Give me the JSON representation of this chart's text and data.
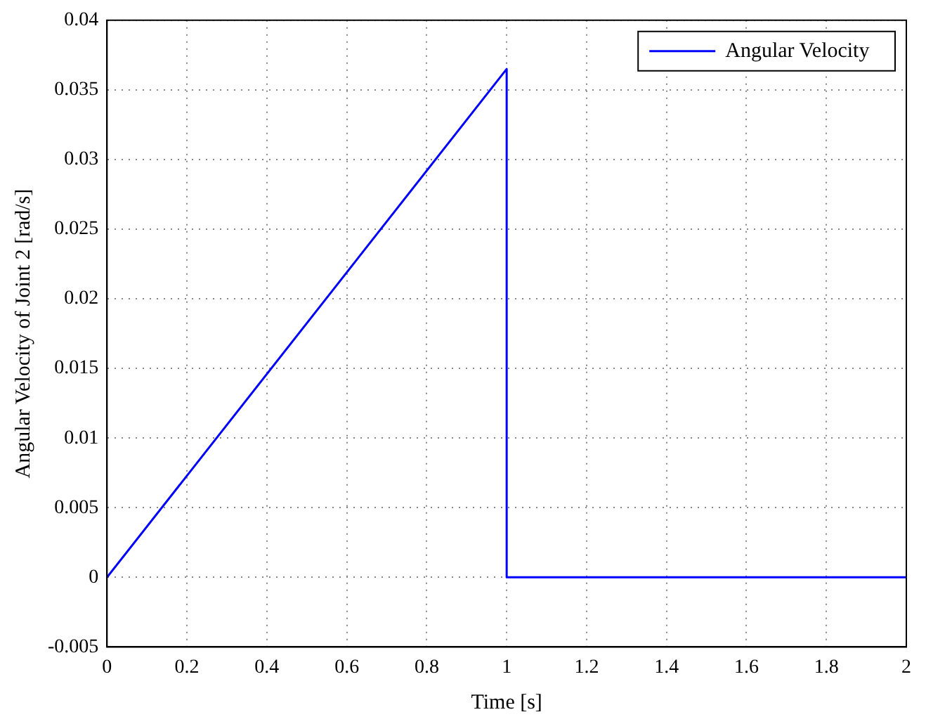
{
  "chart_data": {
    "type": "line",
    "xlabel": "Time [s]",
    "ylabel": "Angular Velocity of Joint 2 [rad/s]",
    "series": [
      {
        "name": "Angular Velocity",
        "color": "#0000ff",
        "x": [
          0,
          1,
          1,
          2
        ],
        "values": [
          0,
          0.0365,
          0,
          0
        ]
      }
    ],
    "xlim": [
      0,
      2
    ],
    "xticks": [
      0,
      0.2,
      0.4,
      0.6,
      0.8,
      1,
      1.2,
      1.4,
      1.6,
      1.8,
      2
    ],
    "ylim": [
      -0.005,
      0.04
    ],
    "yticks": [
      -0.005,
      0,
      0.005,
      0.01,
      0.015,
      0.02,
      0.025,
      0.03,
      0.035,
      0.04
    ],
    "grid": true,
    "legend": "top right",
    "marker": "none",
    "line_style": "solid"
  }
}
